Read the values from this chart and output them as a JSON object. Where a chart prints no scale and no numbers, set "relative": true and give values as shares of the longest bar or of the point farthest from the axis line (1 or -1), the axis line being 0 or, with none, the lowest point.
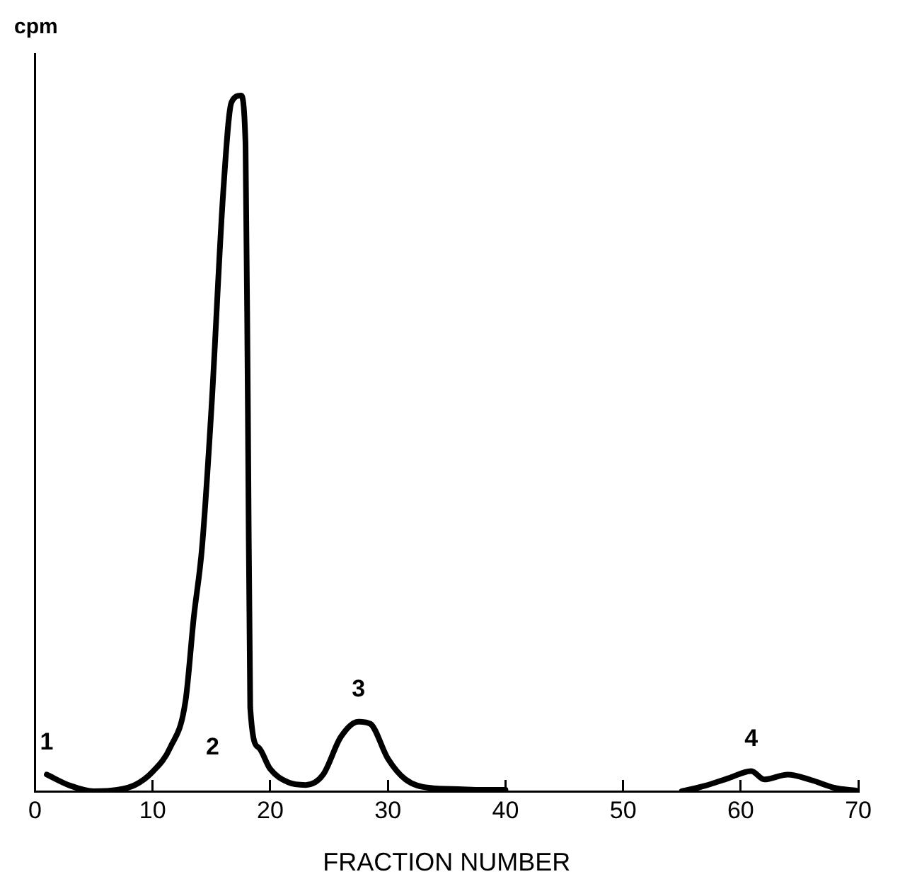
{
  "chart_data": {
    "type": "line",
    "relative": true,
    "xlabel": "FRACTION NUMBER",
    "ylabel": "cpm",
    "xlim": [
      0,
      70
    ],
    "xticks": [
      0,
      10,
      20,
      30,
      40,
      50,
      60,
      70
    ],
    "grid": false,
    "legend": false,
    "marker": "none",
    "line_style": "solid",
    "series": [
      {
        "color": "#000000",
        "x": [
          1,
          3,
          5,
          7,
          8.5,
          10,
          11.5,
          12.8,
          13.5,
          14.2,
          15,
          16,
          16.7,
          17.5,
          17.9,
          18.1,
          18.3,
          19,
          20,
          21.5,
          23,
          24.5,
          26,
          27.5,
          28.5,
          30,
          31.5,
          33.5,
          36,
          38,
          40,
          47,
          55,
          57,
          59,
          60.9,
          62,
          64,
          66,
          68,
          69.8
        ],
        "values": [
          0.024,
          0.008,
          0,
          0.002,
          0.009,
          0.028,
          0.063,
          0.13,
          0.25,
          0.35,
          0.55,
          0.86,
          0.99,
          1,
          0.93,
          0.55,
          0.12,
          0.063,
          0.032,
          0.013,
          0.009,
          0.024,
          0.078,
          0.1,
          0.097,
          0.047,
          0.017,
          0.005,
          0.003,
          0.002,
          0.002,
          null,
          0,
          0.008,
          0.019,
          0.029,
          0.017,
          0.024,
          0.016,
          0.005,
          0.001
        ]
      }
    ],
    "annotations": [
      "1",
      "2",
      "3",
      "4"
    ]
  }
}
